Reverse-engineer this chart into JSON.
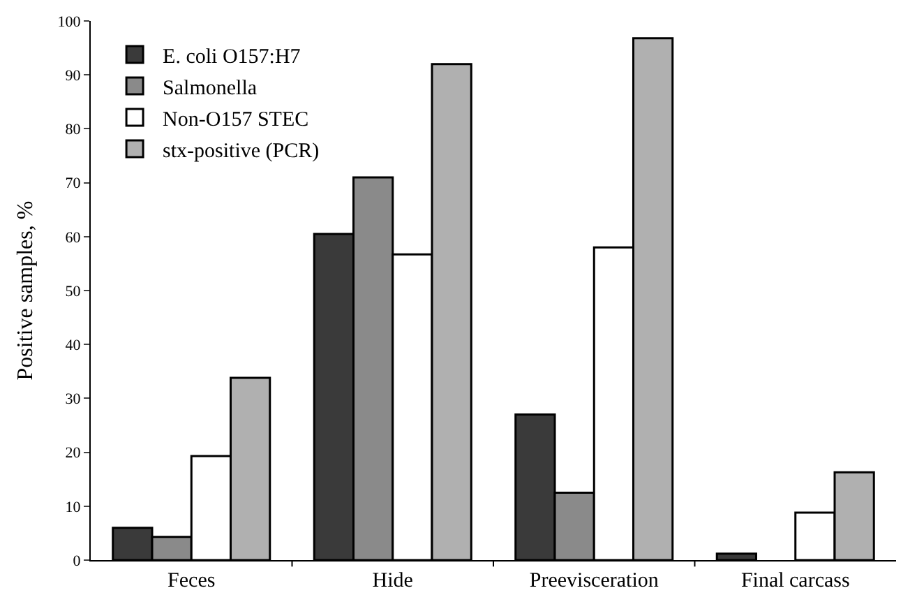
{
  "chart_data": {
    "type": "bar",
    "ylabel": "Positive samples, %",
    "categories": [
      "Feces",
      "Hide",
      "Preevisceration",
      "Final carcass"
    ],
    "series": [
      {
        "name": "E. coli O157:H7",
        "color": "#3a3a3a",
        "values": [
          6,
          60.5,
          27,
          1.2
        ]
      },
      {
        "name": "Salmonella",
        "color": "#8a8a8a",
        "values": [
          4.3,
          71,
          12.5,
          null
        ]
      },
      {
        "name": "Non-O157 STEC",
        "color": "#ffffff",
        "values": [
          19.3,
          56.7,
          58,
          8.8
        ]
      },
      {
        "name": "stx-positive (PCR)",
        "color": "#b0b0b0",
        "values": [
          33.8,
          92,
          96.8,
          16.3
        ]
      }
    ],
    "ylim": [
      0,
      100
    ],
    "yticks": [
      0,
      10,
      20,
      30,
      40,
      50,
      60,
      70,
      80,
      90,
      100
    ],
    "grid": false,
    "legend": "top left"
  }
}
